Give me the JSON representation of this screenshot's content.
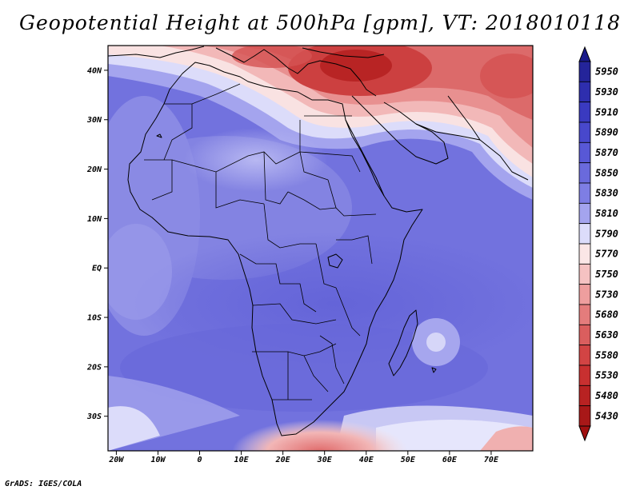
{
  "title": "Geopotential Height at 500hPa [gpm], VT: 2018010118",
  "footer": "GrADS: IGES/COLA",
  "map": {
    "lon_range": [
      -22,
      80
    ],
    "lat_range": [
      -37,
      45
    ],
    "lon_ticks": [
      {
        "value": -20,
        "label": "20W"
      },
      {
        "value": -10,
        "label": "10W"
      },
      {
        "value": 0,
        "label": "0"
      },
      {
        "value": 10,
        "label": "10E"
      },
      {
        "value": 20,
        "label": "20E"
      },
      {
        "value": 30,
        "label": "30E"
      },
      {
        "value": 40,
        "label": "40E"
      },
      {
        "value": 50,
        "label": "50E"
      },
      {
        "value": 60,
        "label": "60E"
      },
      {
        "value": 70,
        "label": "70E"
      }
    ],
    "lat_ticks": [
      {
        "value": 40,
        "label": "40N"
      },
      {
        "value": 30,
        "label": "30N"
      },
      {
        "value": 20,
        "label": "20N"
      },
      {
        "value": 10,
        "label": "10N"
      },
      {
        "value": 0,
        "label": "EQ"
      },
      {
        "value": -10,
        "label": "10S"
      },
      {
        "value": -20,
        "label": "20S"
      },
      {
        "value": -30,
        "label": "30S"
      }
    ]
  },
  "colorbar": {
    "levels": [
      {
        "label": "5950",
        "color": "#24249a"
      },
      {
        "label": "5930",
        "color": "#2e2eae"
      },
      {
        "label": "5910",
        "color": "#3a3ac0"
      },
      {
        "label": "5890",
        "color": "#4848cc"
      },
      {
        "label": "5870",
        "color": "#5858d6"
      },
      {
        "label": "5850",
        "color": "#6a6adc"
      },
      {
        "label": "5830",
        "color": "#7e7ee4"
      },
      {
        "label": "5810",
        "color": "#a4a4ee"
      },
      {
        "label": "5790",
        "color": "#dcdcfa"
      },
      {
        "label": "5770",
        "color": "#fbe6e6"
      },
      {
        "label": "5750",
        "color": "#f5c2c2"
      },
      {
        "label": "5730",
        "color": "#ee9e9e"
      },
      {
        "label": "5680",
        "color": "#e47c7c"
      },
      {
        "label": "5630",
        "color": "#da5e5e"
      },
      {
        "label": "5580",
        "color": "#d24444"
      },
      {
        "label": "5530",
        "color": "#c83030"
      },
      {
        "label": "5480",
        "color": "#b82222"
      },
      {
        "label": "5430",
        "color": "#a81818"
      }
    ],
    "top_arrow_color": "#1a1a8a",
    "bottom_arrow_color": "#a01010"
  }
}
